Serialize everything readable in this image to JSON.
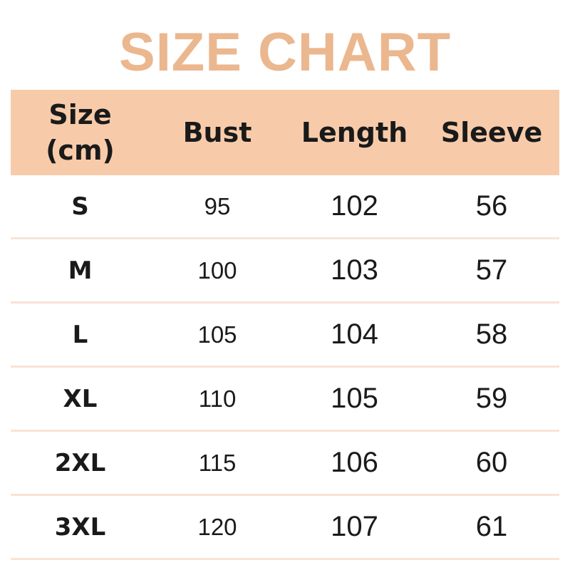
{
  "title": "SIZE CHART",
  "colors": {
    "title": "#EBB78F",
    "header_bg": "#F7CBAA",
    "divider": "#F8E3D5"
  },
  "table": {
    "headers": [
      [
        "Size",
        "(cm)"
      ],
      "Bust",
      "Length",
      "Sleeve"
    ],
    "rows": [
      [
        "S",
        "95",
        "102",
        "56"
      ],
      [
        "M",
        "100",
        "103",
        "57"
      ],
      [
        "L",
        "105",
        "104",
        "58"
      ],
      [
        "XL",
        "110",
        "105",
        "59"
      ],
      [
        "2XL",
        "115",
        "106",
        "60"
      ],
      [
        "3XL",
        "120",
        "107",
        "61"
      ]
    ]
  }
}
